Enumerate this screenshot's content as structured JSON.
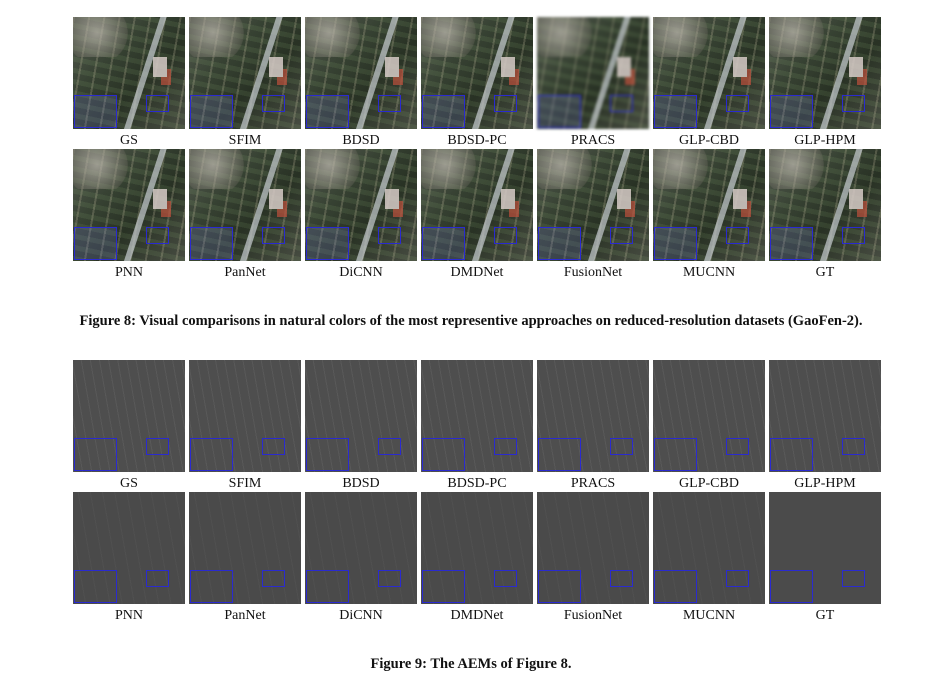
{
  "figure8": {
    "row1_labels": [
      "GS",
      "SFIM",
      "BDSD",
      "BDSD-PC",
      "PRACS",
      "GLP-CBD",
      "GLP-HPM"
    ],
    "row2_labels": [
      "PNN",
      "PanNet",
      "DiCNN",
      "DMDNet",
      "FusionNet",
      "MUCNN",
      "GT"
    ],
    "caption": "Figure 8: Visual comparisons in natural colors of the most representive approaches on reduced-resolution datasets (GaoFen-2)."
  },
  "figure9": {
    "row1_labels": [
      "GS",
      "SFIM",
      "BDSD",
      "BDSD-PC",
      "PRACS",
      "GLP-CBD",
      "GLP-HPM"
    ],
    "row2_labels": [
      "PNN",
      "PanNet",
      "DiCNN",
      "DMDNet",
      "FusionNet",
      "MUCNN",
      "GT"
    ],
    "caption": "Figure 9: The AEMs of Figure 8."
  }
}
